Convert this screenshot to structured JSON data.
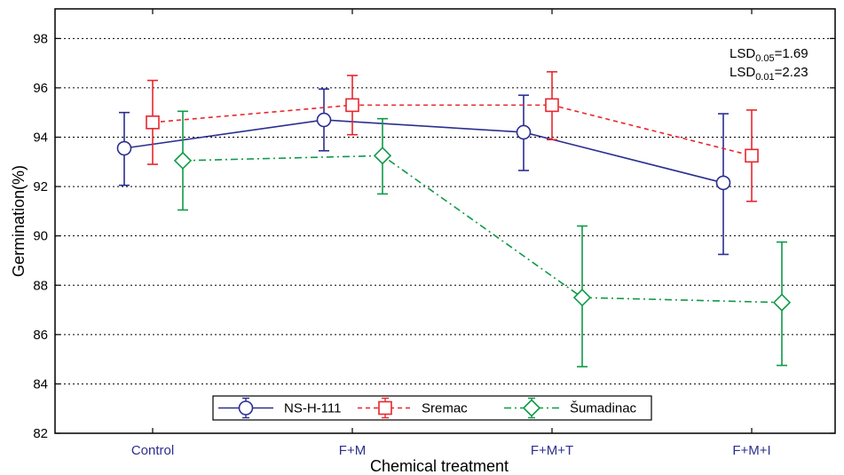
{
  "chart_data": {
    "type": "line",
    "categories": [
      "Control",
      "F+M",
      "F+M+T",
      "F+M+I"
    ],
    "xlabel": "Chemical treatment",
    "ylabel": "Germination(%)",
    "ylim": [
      82,
      99.2
    ],
    "yticks": [
      82,
      84,
      86,
      88,
      90,
      92,
      94,
      96,
      98
    ],
    "grid": "horizontal dotted",
    "legend_position": "bottom-center",
    "series": [
      {
        "name": "NS-H-111",
        "color": "#2b2f8f",
        "marker": "circle",
        "line_style": "solid",
        "values": [
          93.55,
          94.7,
          94.2,
          92.15
        ],
        "error_low": [
          92.05,
          93.45,
          92.65,
          89.25
        ],
        "error_high": [
          95.0,
          95.95,
          95.7,
          94.95
        ]
      },
      {
        "name": "Sremac",
        "color": "#e8262d",
        "marker": "square",
        "line_style": "dashed",
        "values": [
          94.6,
          95.3,
          95.3,
          93.25
        ],
        "error_low": [
          92.9,
          94.1,
          93.9,
          91.4
        ],
        "error_high": [
          96.3,
          96.5,
          96.65,
          95.1
        ]
      },
      {
        "name": "Šumadinac",
        "color": "#0f9a48",
        "marker": "diamond",
        "line_style": "dash-dot",
        "values": [
          93.05,
          93.25,
          87.5,
          87.3
        ],
        "error_low": [
          91.05,
          91.7,
          84.7,
          84.75
        ],
        "error_high": [
          95.05,
          94.75,
          90.4,
          89.75
        ]
      }
    ],
    "annotations": {
      "lsd_005_main": "LSD",
      "lsd_005_sub": "0.05",
      "lsd_005_value": "=1.69",
      "lsd_001_main": "LSD",
      "lsd_001_sub": "0.01",
      "lsd_001_value": "=2.23"
    }
  }
}
